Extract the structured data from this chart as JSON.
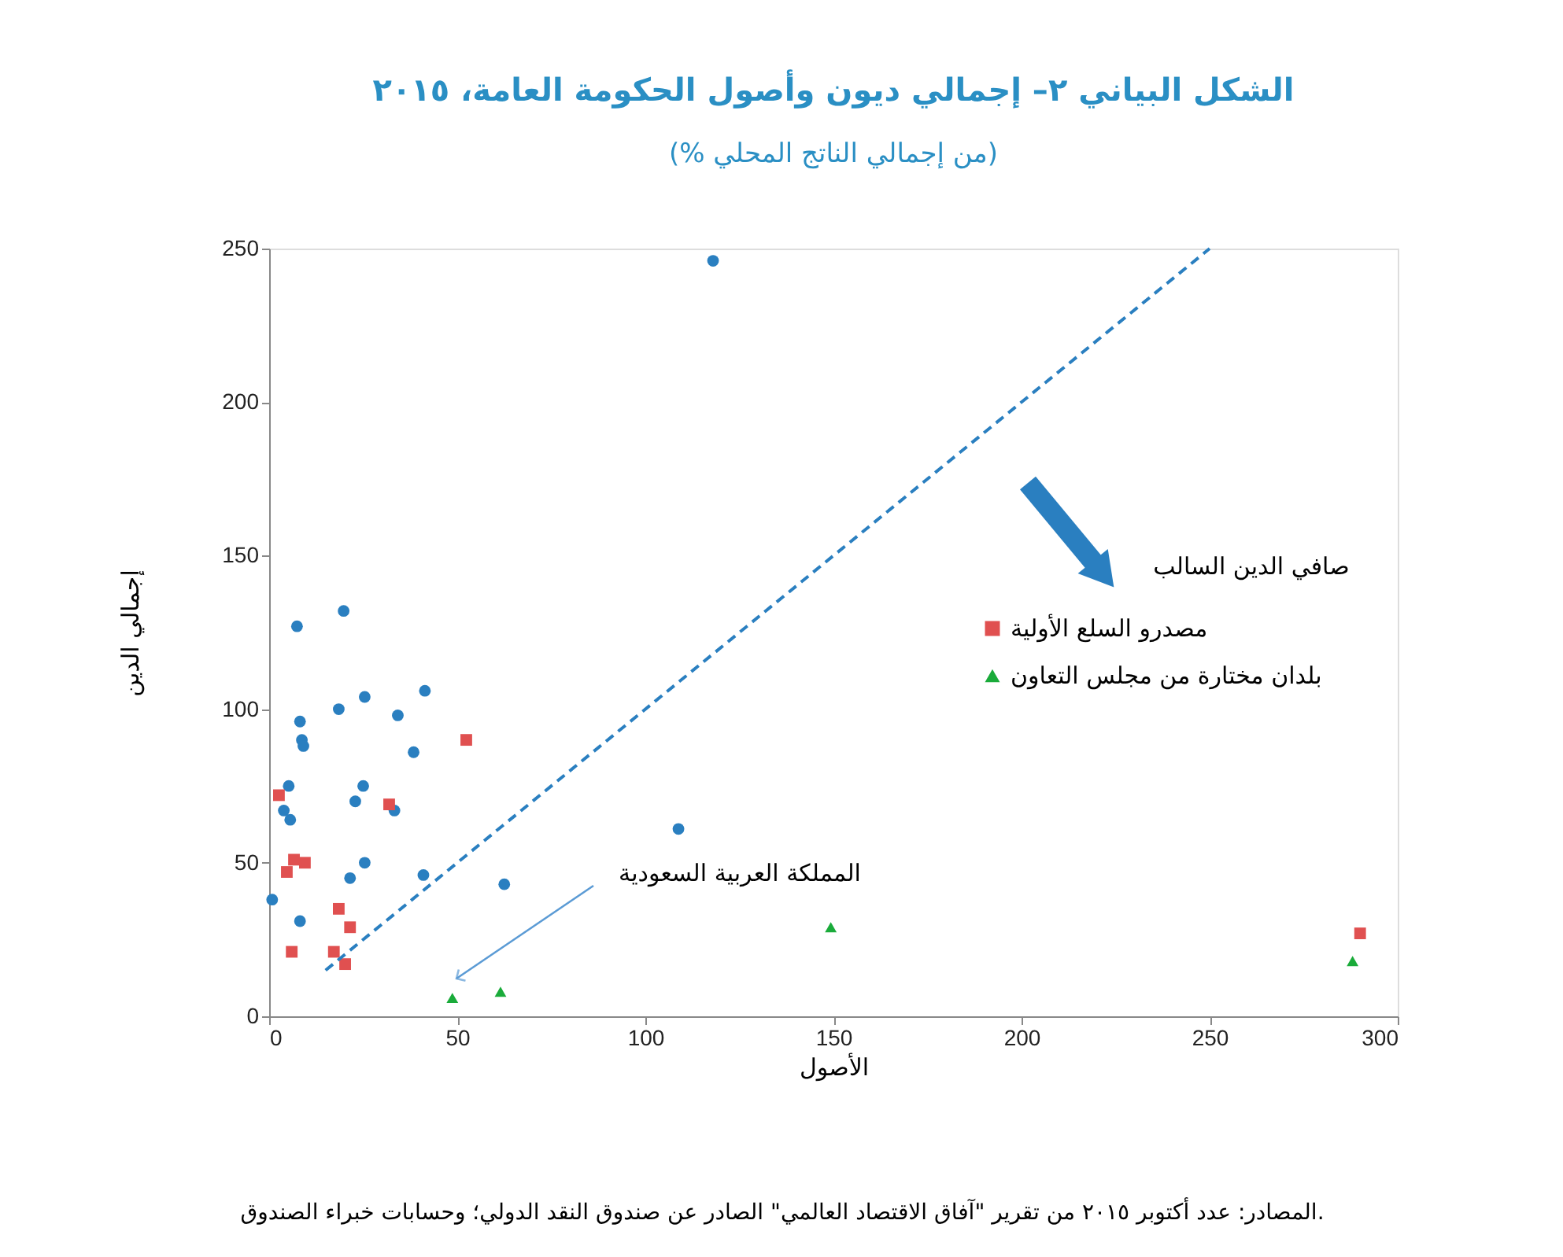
{
  "chart_data": {
    "type": "scatter",
    "title": "الشكل البياني ٢– إجمالي ديون وأصول الحكومة العامة، ٢٠١٥",
    "subtitle": "(% من إجمالي الناتج المحلي)",
    "xlabel": "الأصول",
    "ylabel": "إجمالي الدين",
    "xlim": [
      0,
      300
    ],
    "xticks": [
      0,
      50,
      100,
      150,
      200,
      250,
      300
    ],
    "ylim": [
      0,
      250
    ],
    "yticks": [
      0,
      50,
      100,
      150,
      200,
      250
    ],
    "grid": false,
    "legend": "right",
    "series": [
      {
        "color": "#2a7fc0",
        "marker": "circle",
        "x": [
          19.8,
          7.4,
          25.4,
          41.4,
          18.5,
          34.2,
          8.2,
          8.7,
          9.1,
          38.4,
          5.2,
          25,
          22.9,
          33.3,
          3.9,
          5.6,
          25.4,
          21.5,
          41,
          0.8,
          8.2,
          62.5,
          108.8,
          118
        ],
        "values": [
          132,
          127,
          104,
          106,
          100,
          98,
          96,
          90,
          88,
          86,
          75,
          75,
          70,
          67,
          67,
          64,
          50,
          45,
          46,
          38,
          31,
          43,
          61,
          246
        ]
      },
      {
        "name": "مصدرو السلع الأولية",
        "color": "#e05050",
        "marker": "square",
        "x": [
          52.4,
          2.6,
          31.9,
          6.6,
          9.5,
          4.7,
          18.5,
          21.5,
          6,
          17.2,
          20.2,
          290
        ],
        "values": [
          90,
          72,
          69,
          51,
          50,
          47,
          35,
          29,
          21,
          21,
          17,
          27
        ]
      },
      {
        "name": "بلدان مختارة من مجلس التعاون",
        "color": "#1aab3a",
        "marker": "triangle",
        "x": [
          48.7,
          61.5,
          149.3,
          288
        ],
        "values": [
          6,
          8,
          29,
          18
        ]
      },
      {
        "type": "line",
        "color": "#2a7fc0",
        "line_style": "dashed",
        "marker": "none",
        "x": [
          15,
          250
        ],
        "values": [
          15,
          250
        ]
      }
    ],
    "annotations": [
      "صافي الدين السالب",
      "المملكة العربية السعودية",
      "المصادر: عدد أكتوبر ٢٠١٥ من تقرير \"آفاق الاقتصاد العالمي\" الصادر عن صندوق النقد الدولي؛ وحسابات خبراء الصندوق."
    ]
  }
}
